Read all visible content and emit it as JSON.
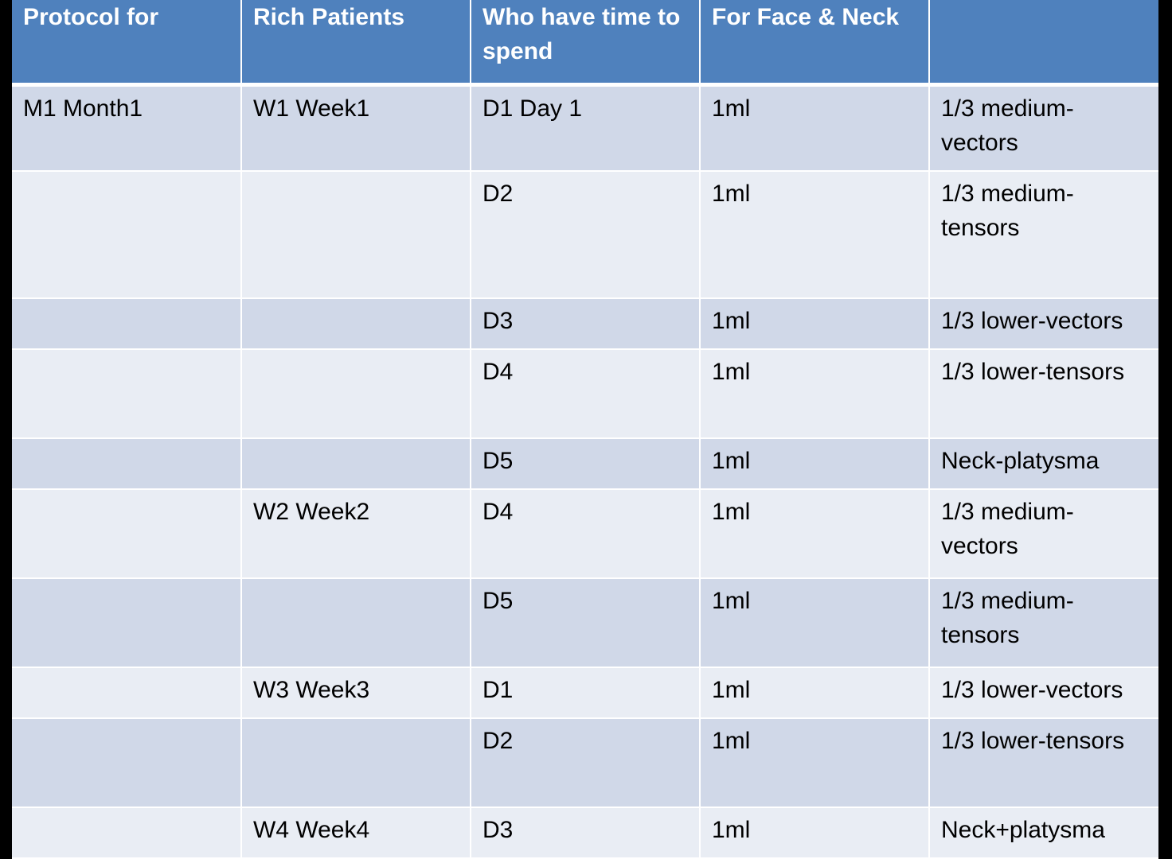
{
  "table": {
    "headers": [
      "Protocol for",
      "Rich Patients",
      "Who have time to spend",
      "For Face & Neck",
      ""
    ],
    "rows": [
      [
        "M1  Month1",
        "W1 Week1",
        "D1 Day 1",
        "1ml",
        "1/3 medium-vectors"
      ],
      [
        "",
        "",
        "D2",
        "1ml",
        "1/3 medium-tensors"
      ],
      [
        "",
        "",
        "D3",
        "1ml",
        "1/3 lower-vectors"
      ],
      [
        "",
        "",
        "D4",
        "1ml",
        "1/3 lower-tensors"
      ],
      [
        "",
        "",
        "D5",
        "1ml",
        "Neck-platysma"
      ],
      [
        "",
        "W2 Week2",
        "D4",
        "1ml",
        "1/3 medium-vectors"
      ],
      [
        "",
        "",
        "D5",
        "1ml",
        "1/3 medium-tensors"
      ],
      [
        "",
        "W3 Week3",
        "D1",
        "1ml",
        "1/3 lower-vectors"
      ],
      [
        "",
        "",
        "D2",
        "1ml",
        "1/3 lower-tensors"
      ],
      [
        "",
        "W4 Week4",
        "D3",
        "1ml",
        "Neck+platysma"
      ]
    ]
  },
  "colors": {
    "header": "#4f81bd",
    "row_odd": "#d0d8e8",
    "row_even": "#e9edf4"
  }
}
